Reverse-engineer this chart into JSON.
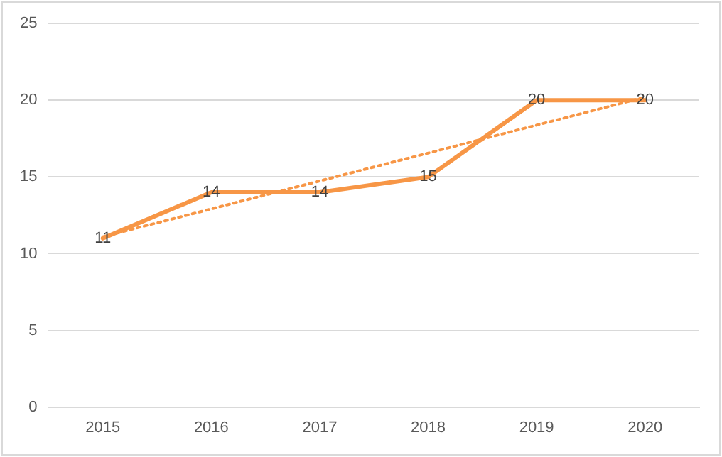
{
  "chart_data": {
    "type": "line",
    "categories": [
      "2015",
      "2016",
      "2017",
      "2018",
      "2019",
      "2020"
    ],
    "series": [
      {
        "color": "#f79646",
        "values": [
          11,
          14,
          14,
          15,
          20,
          20
        ],
        "data_labels": true,
        "line_style": "solid"
      },
      {
        "type": "line",
        "color": "#f79646",
        "values": [
          11.1,
          null,
          null,
          null,
          null,
          20.2
        ],
        "line_style": "dotted"
      }
    ],
    "ylim": [
      0,
      25
    ],
    "yticks": [
      0,
      5,
      10,
      15,
      20,
      25
    ],
    "grid": "y",
    "legend": false,
    "marker": "none"
  }
}
